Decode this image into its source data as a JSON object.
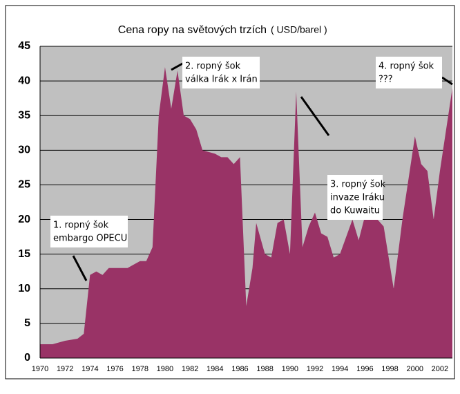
{
  "chart_data": {
    "type": "area",
    "title": "Cena ropy na světových trzích",
    "unit": "( USD/barel )",
    "color": "#993366",
    "x": [
      1970,
      1971,
      1972,
      1973,
      1973.5,
      1974,
      1974.5,
      1975,
      1975.5,
      1976,
      1977,
      1978,
      1978.5,
      1979,
      1979.5,
      1980,
      1980.5,
      1981,
      1981.5,
      1982,
      1982.5,
      1983,
      1984,
      1984.5,
      1985,
      1985.5,
      1986,
      1986.5,
      1987,
      1987.3,
      1988,
      1988.5,
      1989,
      1989.5,
      1990,
      1990.5,
      1991,
      1991.5,
      1992,
      1992.5,
      1993,
      1993.5,
      1994,
      1995,
      1995.5,
      1996.5,
      1997,
      1997.5,
      1998.3,
      1999,
      2000,
      2000.5,
      2001,
      2001.5,
      2002,
      2002.5,
      2003
    ],
    "values": [
      2,
      2,
      2.5,
      2.8,
      3.5,
      12,
      12.5,
      12,
      13,
      13,
      13,
      14,
      14,
      16,
      35,
      42,
      36,
      41.5,
      35,
      34.5,
      33,
      30,
      29.5,
      29,
      29,
      28,
      29,
      7.5,
      13,
      19.5,
      15,
      14.5,
      19.5,
      20,
      15,
      38.5,
      16,
      19,
      21,
      18,
      17.5,
      14.5,
      15,
      20,
      17,
      24,
      20,
      19,
      10,
      20,
      32,
      28,
      27,
      20,
      27,
      33,
      39
    ],
    "xlim": [
      1970,
      2003
    ],
    "xticks": [
      1970,
      1972,
      1974,
      1976,
      1978,
      1980,
      1982,
      1984,
      1986,
      1988,
      1990,
      1992,
      1994,
      1996,
      1998,
      2000,
      2002
    ],
    "ylim": [
      0,
      45
    ],
    "yticks": [
      0,
      5,
      10,
      15,
      20,
      25,
      30,
      35,
      40,
      45
    ],
    "grid": true,
    "annotations": [
      {
        "lines": [
          "1. ropný šok",
          "embargo OPECU"
        ]
      },
      {
        "lines": [
          "2. ropný šok",
          "válka Irák x Irán"
        ]
      },
      {
        "lines": [
          "3. ropný šok",
          "invaze Iráku",
          "do Kuwaitu"
        ]
      },
      {
        "lines": [
          "4. ropný šok",
          "???"
        ]
      }
    ]
  }
}
